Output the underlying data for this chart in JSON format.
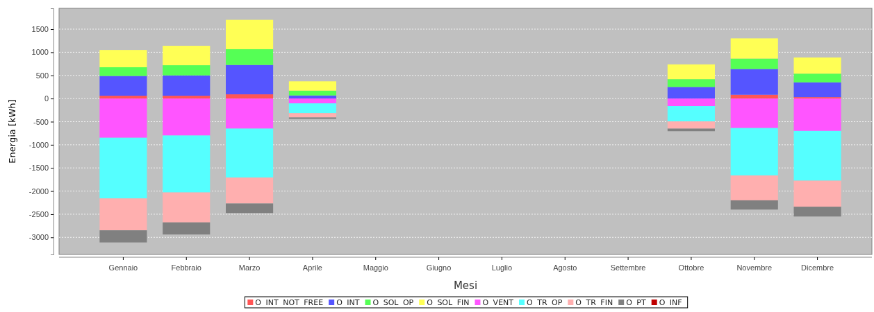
{
  "chart_data": {
    "type": "bar",
    "stacked": true,
    "xlabel": "Mesi",
    "ylabel": "Energia [kWh]",
    "categories": [
      "Gennaio",
      "Febbraio",
      "Marzo",
      "Aprile",
      "Maggio",
      "Giugno",
      "Luglio",
      "Agosto",
      "Settembre",
      "Ottobre",
      "Novembre",
      "Dicembre"
    ],
    "series": [
      {
        "name": "O INT NOT FREE",
        "color": "#ff5555",
        "values": [
          61,
          61,
          91,
          0,
          0,
          0,
          0,
          0,
          0,
          0,
          81,
          30
        ]
      },
      {
        "name": "O INT",
        "color": "#5555ff",
        "values": [
          427,
          439,
          635,
          67,
          0,
          0,
          0,
          0,
          0,
          250,
          557,
          320
        ]
      },
      {
        "name": "O SOL OP",
        "color": "#55ff55",
        "values": [
          189,
          220,
          341,
          104,
          0,
          0,
          0,
          0,
          0,
          169,
          225,
          188
        ]
      },
      {
        "name": "O SOL FIN",
        "color": "#ffff55",
        "values": [
          372,
          420,
          634,
          201,
          0,
          0,
          0,
          0,
          0,
          319,
          437,
          350
        ]
      },
      {
        "name": "O VENT",
        "color": "#ff55ff",
        "values": [
          -848,
          -799,
          -650,
          -104,
          0,
          0,
          0,
          0,
          0,
          -163,
          -638,
          -700
        ]
      },
      {
        "name": "O TR OP",
        "color": "#55ffff",
        "values": [
          -1311,
          -1231,
          -1057,
          -213,
          0,
          0,
          0,
          0,
          0,
          -331,
          -1025,
          -1075
        ]
      },
      {
        "name": "O TR FIN",
        "color": "#ffafaf",
        "values": [
          -689,
          -647,
          -561,
          -92,
          0,
          0,
          0,
          0,
          0,
          -156,
          -537,
          -563
        ]
      },
      {
        "name": "O PT",
        "color": "#808080",
        "values": [
          -262,
          -262,
          -208,
          -30,
          0,
          0,
          0,
          0,
          0,
          -56,
          -200,
          -212
        ]
      },
      {
        "name": "O INF",
        "color": "#c00000",
        "values": [
          0,
          0,
          0,
          0,
          0,
          0,
          0,
          0,
          0,
          0,
          0,
          0
        ]
      }
    ],
    "ylim": [
      -3370,
      1950
    ],
    "yticks": [
      -3000,
      -2500,
      -2000,
      -1500,
      -1000,
      -500,
      0,
      500,
      1000,
      1500
    ],
    "grid": "y",
    "legend": "bottom"
  }
}
